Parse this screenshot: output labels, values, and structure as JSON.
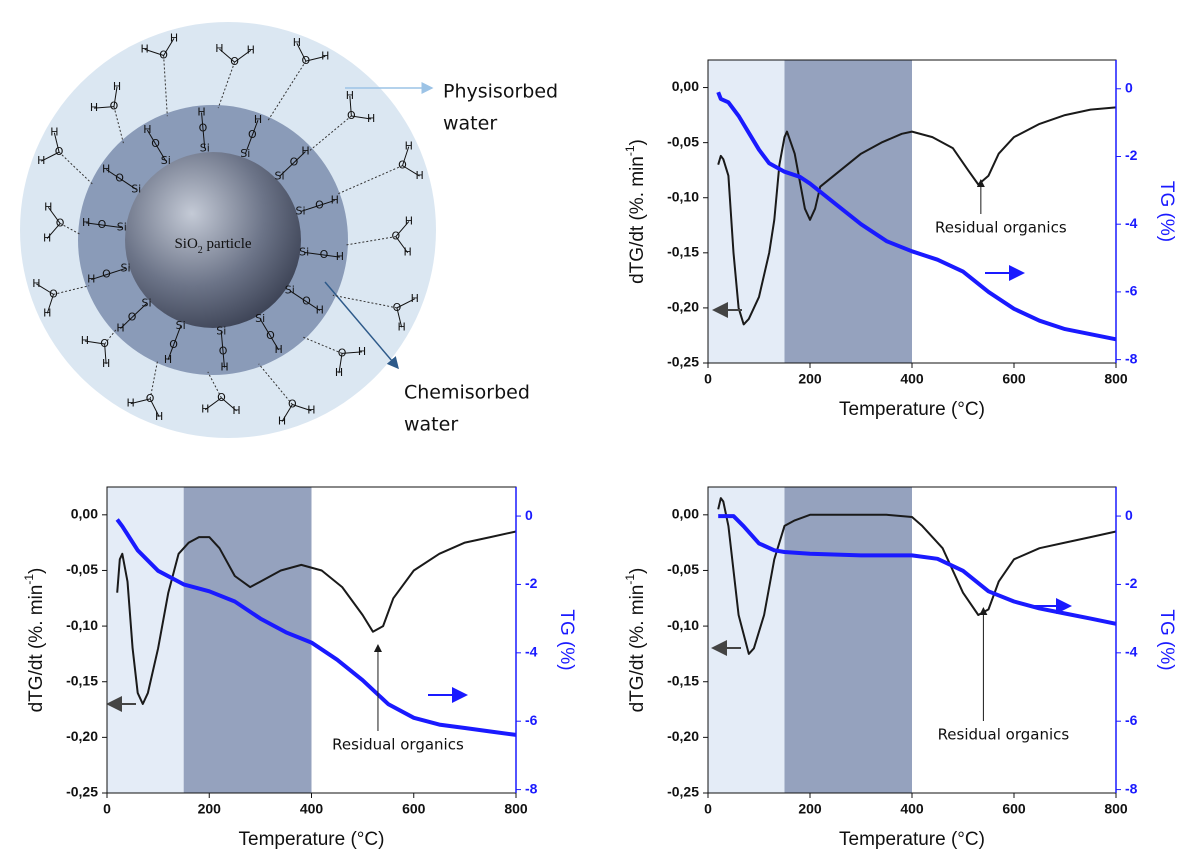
{
  "diagram": {
    "core_label": [
      "SiO",
      "2",
      " particle"
    ],
    "physisorbed_label": [
      "Physisorbed",
      "water"
    ],
    "chemisorbed_label": [
      "Chemisorbed",
      "water"
    ],
    "silanols": [
      [
        "Si",
        "O",
        "H"
      ],
      [
        "Si",
        "O",
        "H"
      ],
      [
        "Si",
        "O",
        "H"
      ],
      [
        "Si",
        "O",
        "H"
      ],
      [
        "Si",
        "O",
        "H"
      ],
      [
        "Si",
        "O",
        "H"
      ],
      [
        "Si",
        "O",
        "H"
      ],
      [
        "Si",
        "O",
        "H"
      ],
      [
        "Si",
        "O",
        "H"
      ],
      [
        "Si",
        "O",
        "H"
      ],
      [
        "Si",
        "O",
        "H"
      ],
      [
        "Si",
        "O",
        "H"
      ],
      [
        "Si",
        "O",
        "H"
      ],
      [
        "Si",
        "O",
        "H"
      ]
    ],
    "waters": [
      [
        "H",
        "O",
        "H"
      ],
      [
        "H",
        "O",
        "H"
      ],
      [
        "H",
        "O",
        "H"
      ],
      [
        "H",
        "O",
        "H"
      ],
      [
        "H",
        "O",
        "H"
      ],
      [
        "H",
        "O",
        "H"
      ],
      [
        "H",
        "O",
        "H"
      ],
      [
        "H",
        "O",
        "H"
      ],
      [
        "H",
        "O",
        "H"
      ],
      [
        "H",
        "O",
        "H"
      ],
      [
        "H",
        "O",
        "H"
      ],
      [
        "H",
        "O",
        "H"
      ],
      [
        "H",
        "O",
        "H"
      ],
      [
        "H",
        "O",
        "H"
      ],
      [
        "H",
        "O",
        "H"
      ],
      [
        "H",
        "O",
        "H"
      ]
    ]
  },
  "chart_data": [
    {
      "type": "line",
      "xlabel": "Temperature (°C)",
      "ylabel": [
        "dTG/dt (%. min",
        "-1",
        ")"
      ],
      "y2label": "TG (%)",
      "xlim": [
        0,
        800
      ],
      "xticks": [
        0,
        200,
        400,
        600,
        800
      ],
      "ylim": [
        -0.25,
        0.025
      ],
      "yticks": [
        {
          "value": 0,
          "label": "0,00"
        },
        {
          "value": -0.05,
          "label": "-0,05"
        },
        {
          "value": -0.1,
          "label": "-0,10"
        },
        {
          "value": -0.15,
          "label": "-0,15"
        },
        {
          "value": -0.2,
          "label": "-0,20"
        },
        {
          "value": -0.25,
          "label": "-0,25"
        }
      ],
      "y2lim": [
        -8.1,
        0.85
      ],
      "y2ticks": [
        0,
        -2,
        -4,
        -6,
        -8
      ],
      "y2color": "#1a1aff",
      "shaded": [
        {
          "from": 0,
          "to": 150,
          "color": "#e4ecf7"
        },
        {
          "from": 150,
          "to": 400,
          "color": "#95a2be"
        }
      ],
      "annotation": {
        "text": "Residual organics",
        "x": 535
      },
      "series": [
        {
          "color": "#1a1a1a",
          "x": [
            20,
            25,
            30,
            40,
            50,
            60,
            70,
            80,
            100,
            120,
            130,
            140,
            150,
            155,
            170,
            190,
            200,
            210,
            220,
            260,
            300,
            340,
            380,
            400,
            440,
            480,
            510,
            530,
            550,
            570,
            600,
            650,
            700,
            750,
            800
          ],
          "values": [
            -0.07,
            -0.062,
            -0.065,
            -0.08,
            -0.15,
            -0.2,
            -0.215,
            -0.21,
            -0.19,
            -0.15,
            -0.12,
            -0.07,
            -0.045,
            -0.04,
            -0.06,
            -0.11,
            -0.12,
            -0.11,
            -0.09,
            -0.075,
            -0.06,
            -0.05,
            -0.042,
            -0.04,
            -0.045,
            -0.055,
            -0.075,
            -0.088,
            -0.08,
            -0.06,
            -0.045,
            -0.033,
            -0.025,
            -0.02,
            -0.018
          ]
        },
        {
          "color": "#1a1aff",
          "axis": "y2",
          "x": [
            20,
            25,
            40,
            60,
            80,
            100,
            120,
            150,
            180,
            200,
            250,
            300,
            350,
            400,
            450,
            500,
            550,
            600,
            650,
            700,
            750,
            800
          ],
          "values": [
            -0.1,
            -0.3,
            -0.4,
            -0.8,
            -1.3,
            -1.8,
            -2.2,
            -2.45,
            -2.6,
            -2.8,
            -3.4,
            -4.0,
            -4.5,
            -4.8,
            -5.05,
            -5.4,
            -6.0,
            -6.5,
            -6.85,
            -7.1,
            -7.25,
            -7.4
          ]
        }
      ]
    },
    {
      "type": "line",
      "xlabel": "Temperature (°C)",
      "ylabel": [
        "dTG/dt (%. min",
        "-1",
        ")"
      ],
      "y2label": "TG (%)",
      "xlim": [
        0,
        800
      ],
      "xticks": [
        0,
        200,
        400,
        600,
        800
      ],
      "ylim": [
        -0.25,
        0.025
      ],
      "yticks": [
        {
          "value": 0,
          "label": "0,00"
        },
        {
          "value": -0.05,
          "label": "-0,05"
        },
        {
          "value": -0.1,
          "label": "-0,10"
        },
        {
          "value": -0.15,
          "label": "-0,15"
        },
        {
          "value": -0.2,
          "label": "-0,20"
        },
        {
          "value": -0.25,
          "label": "-0,25"
        }
      ],
      "y2lim": [
        -8.1,
        0.85
      ],
      "y2ticks": [
        0,
        -2,
        -4,
        -6,
        -8
      ],
      "y2color": "#1a1aff",
      "shaded": [
        {
          "from": 0,
          "to": 150,
          "color": "#e4ecf7"
        },
        {
          "from": 150,
          "to": 400,
          "color": "#95a2be"
        }
      ],
      "annotation": {
        "text": "Residual organics",
        "x": 530
      },
      "series": [
        {
          "color": "#1a1a1a",
          "x": [
            20,
            25,
            30,
            40,
            50,
            60,
            70,
            80,
            100,
            120,
            140,
            160,
            180,
            200,
            220,
            250,
            280,
            300,
            340,
            380,
            420,
            460,
            500,
            520,
            540,
            560,
            600,
            650,
            700,
            750,
            800
          ],
          "values": [
            -0.07,
            -0.04,
            -0.035,
            -0.06,
            -0.12,
            -0.16,
            -0.17,
            -0.16,
            -0.12,
            -0.07,
            -0.035,
            -0.025,
            -0.02,
            -0.02,
            -0.03,
            -0.055,
            -0.065,
            -0.06,
            -0.05,
            -0.045,
            -0.05,
            -0.065,
            -0.09,
            -0.105,
            -0.1,
            -0.075,
            -0.05,
            -0.035,
            -0.025,
            -0.02,
            -0.015
          ]
        },
        {
          "color": "#1a1aff",
          "axis": "y2",
          "x": [
            20,
            30,
            60,
            100,
            150,
            200,
            250,
            300,
            350,
            400,
            450,
            500,
            550,
            600,
            650,
            700,
            750,
            800
          ],
          "values": [
            -0.1,
            -0.3,
            -1.0,
            -1.6,
            -2.0,
            -2.2,
            -2.5,
            -3.0,
            -3.4,
            -3.7,
            -4.2,
            -4.8,
            -5.5,
            -5.9,
            -6.1,
            -6.2,
            -6.3,
            -6.4
          ]
        }
      ]
    },
    {
      "type": "line",
      "xlabel": "Temperature (°C)",
      "ylabel": [
        "dTG/dt (%. min",
        "-1",
        ")"
      ],
      "y2label": "TG (%)",
      "xlim": [
        0,
        800
      ],
      "xticks": [
        0,
        200,
        400,
        600,
        800
      ],
      "ylim": [
        -0.25,
        0.025
      ],
      "yticks": [
        {
          "value": 0,
          "label": "0,00"
        },
        {
          "value": -0.05,
          "label": "-0,05"
        },
        {
          "value": -0.1,
          "label": "-0,10"
        },
        {
          "value": -0.15,
          "label": "-0,15"
        },
        {
          "value": -0.2,
          "label": "-0,20"
        },
        {
          "value": -0.25,
          "label": "-0,25"
        }
      ],
      "y2lim": [
        -8.1,
        0.85
      ],
      "y2ticks": [
        0,
        -2,
        -4,
        -6,
        -8
      ],
      "y2color": "#1a1aff",
      "shaded": [
        {
          "from": 0,
          "to": 150,
          "color": "#e4ecf7"
        },
        {
          "from": 150,
          "to": 400,
          "color": "#95a2be"
        }
      ],
      "annotation": {
        "text": "Residual organics",
        "x": 540
      },
      "series": [
        {
          "color": "#1a1a1a",
          "x": [
            20,
            25,
            30,
            40,
            60,
            80,
            90,
            110,
            130,
            150,
            170,
            200,
            250,
            300,
            350,
            400,
            420,
            460,
            500,
            530,
            550,
            570,
            600,
            650,
            700,
            750,
            800
          ],
          "values": [
            0.005,
            0.015,
            0.012,
            -0.01,
            -0.09,
            -0.125,
            -0.12,
            -0.09,
            -0.04,
            -0.01,
            -0.005,
            0.0,
            0.0,
            0.0,
            0.0,
            -0.002,
            -0.01,
            -0.03,
            -0.07,
            -0.09,
            -0.085,
            -0.06,
            -0.04,
            -0.03,
            -0.025,
            -0.02,
            -0.015
          ]
        },
        {
          "color": "#1a1aff",
          "axis": "y2",
          "x": [
            20,
            50,
            70,
            100,
            130,
            150,
            200,
            300,
            400,
            450,
            500,
            550,
            600,
            650,
            700,
            750,
            800
          ],
          "values": [
            0.0,
            0.0,
            -0.3,
            -0.8,
            -1.0,
            -1.05,
            -1.1,
            -1.15,
            -1.15,
            -1.25,
            -1.6,
            -2.2,
            -2.5,
            -2.7,
            -2.85,
            -3.0,
            -3.15
          ]
        }
      ]
    }
  ]
}
